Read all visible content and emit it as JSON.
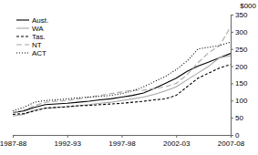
{
  "chart_data": {
    "type": "line",
    "ylabel": "$000",
    "categories": [
      "1987-88",
      null,
      null,
      null,
      null,
      "1992-93",
      null,
      null,
      null,
      null,
      "1997-98",
      null,
      null,
      null,
      null,
      "2002-03",
      null,
      null,
      null,
      null,
      "2007-08"
    ],
    "series": [
      {
        "name": "Aust.",
        "color": "#000000",
        "line_style": "solid",
        "values": [
          65,
          70,
          80,
          88,
          90,
          92,
          95,
          98,
          102,
          105,
          110,
          115,
          122,
          135,
          150,
          165,
          185,
          200,
          212,
          225,
          237
        ]
      },
      {
        "name": "WA",
        "color": "#a6a6a6",
        "line_style": "solid",
        "values": [
          55,
          60,
          72,
          78,
          80,
          82,
          85,
          88,
          92,
          95,
          100,
          105,
          110,
          118,
          128,
          140,
          160,
          180,
          200,
          225,
          230
        ]
      },
      {
        "name": "Tas.",
        "color": "#000000",
        "line_style": "dashed",
        "values": [
          60,
          62,
          70,
          78,
          80,
          82,
          85,
          86,
          88,
          90,
          92,
          95,
          98,
          102,
          105,
          115,
          140,
          165,
          180,
          195,
          205
        ]
      },
      {
        "name": "NT",
        "color": "#a6a6a6",
        "line_style": "longdash",
        "values": [
          65,
          72,
          85,
          95,
          98,
          100,
          105,
          110,
          115,
          120,
          125,
          130,
          130,
          135,
          140,
          150,
          175,
          210,
          240,
          260,
          315
        ]
      },
      {
        "name": "ACT",
        "color": "#000000",
        "line_style": "dotted",
        "values": [
          70,
          80,
          95,
          100,
          102,
          105,
          108,
          110,
          112,
          115,
          120,
          128,
          140,
          155,
          170,
          190,
          215,
          250,
          255,
          260,
          270
        ]
      }
    ],
    "ylim": [
      0,
      350
    ],
    "yticks": [
      0,
      50,
      100,
      150,
      200,
      250,
      300,
      350
    ],
    "legend": "top-left",
    "grid": false
  }
}
